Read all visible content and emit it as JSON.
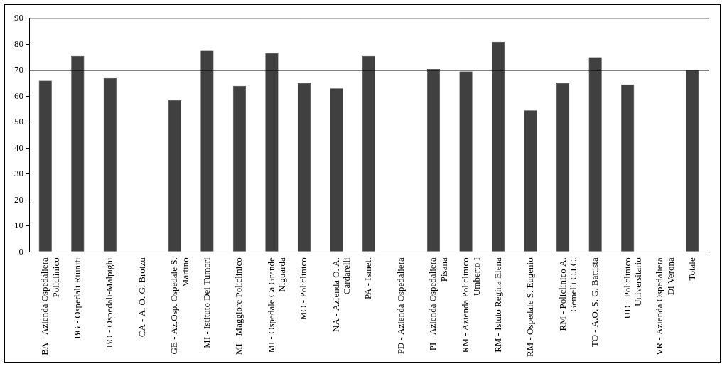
{
  "chart_data": {
    "type": "bar",
    "categories": [
      "BA - Azienda Ospedaliera Policlinico",
      "BG - Ospedali Riuniti",
      "BO - Ospedali-Malpighi",
      "CA - A. O. G. Brotzu",
      "GE - Az.Osp. Ospedale S. Martino",
      "MI - Istituto Dei Tumori",
      "MI - Maggiore Policlinico",
      "MI - Ospedale Ca Grande Niguarda",
      "MO - Policlinico",
      "NA - Azienda O. A. Cardarelli",
      "PA - Ismett",
      "PD - Azienda Ospedaliera",
      "PI - Azienda Ospedaliera Pisana",
      "RM - Azienda Policlinico Umberto I",
      "RM - Istuto Regina Elena",
      "RM - Ospedale S. Eugenio",
      "RM - Policlinico A. Gemelli C.I.C.",
      "TO - A.O. S. G. Battista",
      "UD - Policlinico Universitario",
      "VR - Azienda Ospedaliera Di Verona",
      "Totale"
    ],
    "values": [
      66,
      75.5,
      67,
      null,
      58.5,
      77.5,
      64,
      76.5,
      65,
      63,
      75.5,
      null,
      70.5,
      69.5,
      81,
      54.5,
      65,
      75,
      64.5,
      null,
      70
    ],
    "color": "#404040",
    "reference_line": 70,
    "ylim": [
      0,
      90
    ],
    "yticks": [
      0,
      10,
      20,
      30,
      40,
      50,
      60,
      70,
      80,
      90
    ],
    "grid": false
  }
}
